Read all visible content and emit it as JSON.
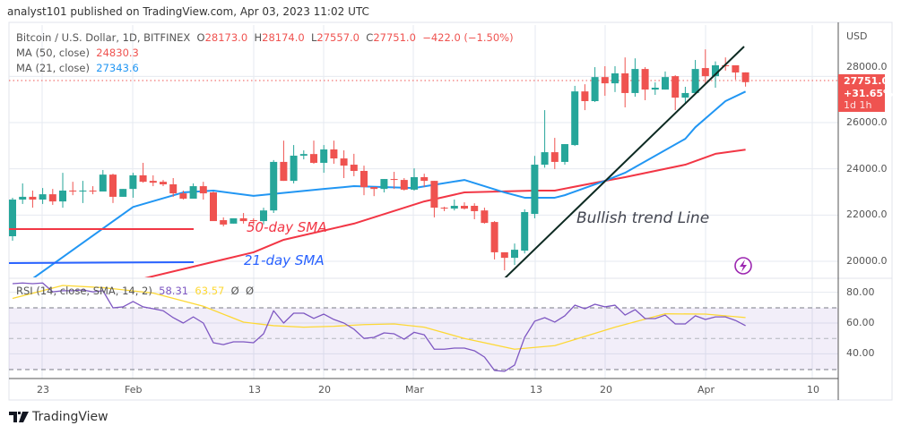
{
  "header": {
    "published": "analyst101 published on TradingView.com, Apr 03, 2023 11:02 UTC"
  },
  "legend": {
    "symbol": "Bitcoin / U.S. Dollar, 1D, BITFINEX",
    "open_label": "O",
    "open": "28173.0",
    "high_label": "H",
    "high": "28174.0",
    "low_label": "L",
    "low": "27557.0",
    "close_label": "C",
    "close": "27751.0",
    "change": "−422.0 (−1.50%)",
    "ma50_label": "MA (50, close)",
    "ma50_value": "24830.3",
    "ma21_label": "MA (21, close)",
    "ma21_value": "27343.6",
    "rsi_label": "RSI (14, close, SMA, 14, 2)",
    "rsi_value": "58.31",
    "rsi_sma_value": "63.57",
    "rsi_extra1": "Ø",
    "rsi_extra2": "Ø"
  },
  "price_axis": {
    "currency": "USD",
    "ticks": [
      "28000.0",
      "26000.0",
      "24000.0",
      "22000.0",
      "20000.0"
    ],
    "rsi_ticks": [
      "80.00",
      "60.00",
      "40.00"
    ]
  },
  "price_tag": {
    "price": "27751.0",
    "change": "+31.65%",
    "countdown": "1d 1h"
  },
  "time_axis": [
    "23",
    "Feb",
    "13",
    "20",
    "Mar",
    "13",
    "20",
    "Apr",
    "10"
  ],
  "drawings": {
    "sma50_label": "50-day SMA",
    "sma21_label": "21-day SMA",
    "trend_label": "Bullish trend Line"
  },
  "footer": {
    "brand": "TradingView"
  },
  "colors": {
    "up": "#26a69a",
    "down": "#ef5350",
    "ma50": "#f23645",
    "ma21": "#2196f3",
    "rsi": "#7e57c2",
    "rsi_sma": "#fdd835",
    "trendline": "#0d2a22"
  },
  "chart_data": {
    "type": "candlestick",
    "price_range": [
      19300,
      30200
    ],
    "candles_columns": [
      "date",
      "open",
      "high",
      "low",
      "close"
    ],
    "candles": [
      [
        "2023-01-20",
        21084,
        22750,
        20890,
        22670
      ],
      [
        "2023-01-21",
        22670,
        23370,
        22480,
        22790
      ],
      [
        "2023-01-22",
        22790,
        23060,
        22320,
        22670
      ],
      [
        "2023-01-23",
        22670,
        23170,
        22480,
        22900
      ],
      [
        "2023-01-24",
        22900,
        23130,
        22440,
        22590
      ],
      [
        "2023-01-25",
        22590,
        23830,
        22320,
        23060
      ],
      [
        "2023-01-26",
        23060,
        23440,
        22860,
        23020
      ],
      [
        "2023-01-27",
        23020,
        23480,
        22520,
        23060
      ],
      [
        "2023-01-28",
        23060,
        23250,
        22900,
        23020
      ],
      [
        "2023-01-29",
        23020,
        23950,
        23020,
        23750
      ],
      [
        "2023-01-30",
        23750,
        23790,
        22520,
        22790
      ],
      [
        "2023-01-31",
        22790,
        23130,
        22790,
        23130
      ],
      [
        "2023-02-01",
        23130,
        23830,
        22750,
        23720
      ],
      [
        "2023-02-02",
        23720,
        24260,
        23400,
        23440
      ],
      [
        "2023-02-03",
        23480,
        23720,
        23250,
        23400
      ],
      [
        "2023-02-04",
        23440,
        23520,
        23250,
        23330
      ],
      [
        "2023-02-05",
        23330,
        23600,
        22790,
        22940
      ],
      [
        "2023-02-06",
        22940,
        23060,
        22670,
        22710
      ],
      [
        "2023-02-07",
        22710,
        23370,
        22710,
        23250
      ],
      [
        "2023-02-08",
        23250,
        23440,
        22670,
        22940
      ],
      [
        "2023-02-09",
        22980,
        23020,
        21740,
        21740
      ],
      [
        "2023-02-10",
        21780,
        21900,
        21510,
        21590
      ],
      [
        "2023-02-11",
        21630,
        21860,
        21630,
        21860
      ],
      [
        "2023-02-12",
        21860,
        22090,
        21630,
        21740
      ],
      [
        "2023-02-13",
        21780,
        21860,
        21550,
        21740
      ],
      [
        "2023-02-14",
        21740,
        22320,
        21590,
        22200
      ],
      [
        "2023-02-15",
        22200,
        24380,
        22090,
        24300
      ],
      [
        "2023-02-16",
        24300,
        25220,
        23480,
        23480
      ],
      [
        "2023-02-17",
        23480,
        25030,
        23370,
        24570
      ],
      [
        "2023-02-18",
        24570,
        24800,
        24410,
        24640
      ],
      [
        "2023-02-19",
        24640,
        25220,
        24220,
        24260
      ],
      [
        "2023-02-20",
        24260,
        25030,
        23830,
        24840
      ],
      [
        "2023-02-21",
        24840,
        25220,
        24220,
        24450
      ],
      [
        "2023-02-22",
        24450,
        24800,
        23600,
        24140
      ],
      [
        "2023-02-23",
        24180,
        24650,
        23680,
        23910
      ],
      [
        "2023-02-24",
        23910,
        24140,
        22860,
        23210
      ],
      [
        "2023-02-25",
        23210,
        23210,
        22820,
        23130
      ],
      [
        "2023-02-26",
        23130,
        23560,
        22980,
        23560
      ],
      [
        "2023-02-27",
        23560,
        23870,
        23130,
        23520
      ],
      [
        "2023-02-28",
        23520,
        23600,
        23060,
        23100
      ],
      [
        "2023-03-01",
        23100,
        24020,
        23060,
        23640
      ],
      [
        "2023-03-02",
        23640,
        23790,
        23210,
        23480
      ],
      [
        "2023-03-03",
        23480,
        23480,
        21900,
        22320
      ],
      [
        "2023-03-04",
        22320,
        22360,
        22170,
        22280
      ],
      [
        "2023-03-05",
        22280,
        22670,
        22200,
        22400
      ],
      [
        "2023-03-06",
        22400,
        22550,
        22240,
        22280
      ],
      [
        "2023-03-07",
        22400,
        22510,
        21820,
        22170
      ],
      [
        "2023-03-08",
        22200,
        22320,
        21630,
        21660
      ],
      [
        "2023-03-09",
        21700,
        21740,
        20080,
        20390
      ],
      [
        "2023-03-10",
        20390,
        20390,
        19610,
        20150
      ],
      [
        "2023-03-11",
        20150,
        20770,
        19840,
        20500
      ],
      [
        "2023-03-12",
        20460,
        22250,
        20340,
        22130
      ],
      [
        "2023-03-13",
        22050,
        24560,
        21860,
        24180
      ],
      [
        "2023-03-14",
        24180,
        26540,
        24050,
        24720
      ],
      [
        "2023-03-15",
        24720,
        25340,
        23990,
        24300
      ],
      [
        "2023-03-16",
        24300,
        25070,
        24180,
        25070
      ],
      [
        "2023-03-17",
        25030,
        27590,
        24990,
        27350
      ],
      [
        "2023-03-18",
        27350,
        27660,
        26540,
        26930
      ],
      [
        "2023-03-19",
        26930,
        28400,
        26890,
        27970
      ],
      [
        "2023-03-20",
        27970,
        28440,
        27160,
        27700
      ],
      [
        "2023-03-21",
        27700,
        28440,
        27320,
        28130
      ],
      [
        "2023-03-22",
        28130,
        28820,
        26660,
        27280
      ],
      [
        "2023-03-23",
        27280,
        28780,
        27120,
        28320
      ],
      [
        "2023-03-24",
        28320,
        28400,
        26970,
        27430
      ],
      [
        "2023-03-25",
        27430,
        27740,
        27200,
        27510
      ],
      [
        "2023-03-26",
        27430,
        28210,
        27430,
        27970
      ],
      [
        "2023-03-27",
        28010,
        28050,
        26540,
        27080
      ],
      [
        "2023-03-28",
        27080,
        27550,
        26810,
        27280
      ],
      [
        "2023-03-29",
        27280,
        28710,
        27280,
        28320
      ],
      [
        "2023-03-30",
        28360,
        29170,
        27660,
        28010
      ],
      [
        "2023-03-31",
        28010,
        28650,
        27510,
        28480
      ],
      [
        "2023-04-01",
        28480,
        28820,
        28250,
        28440
      ],
      [
        "2023-04-02",
        28480,
        28480,
        27860,
        28170
      ],
      [
        "2023-04-03",
        28173,
        28174,
        27557,
        27751
      ]
    ],
    "ma50": [
      [
        "2023-02-02",
        19250
      ],
      [
        "2023-02-13",
        20390
      ],
      [
        "2023-02-16",
        20930
      ],
      [
        "2023-02-23",
        21630
      ],
      [
        "2023-03-02",
        22590
      ],
      [
        "2023-03-06",
        22980
      ],
      [
        "2023-03-13",
        23060
      ],
      [
        "2023-03-15",
        23060
      ],
      [
        "2023-03-20",
        23480
      ],
      [
        "2023-03-22",
        23640
      ],
      [
        "2023-03-28",
        24180
      ],
      [
        "2023-03-31",
        24650
      ],
      [
        "2023-04-03",
        24830
      ]
    ],
    "ma21": [
      [
        "2023-01-22",
        19250
      ],
      [
        "2023-02-01",
        22350
      ],
      [
        "2023-02-06",
        22980
      ],
      [
        "2023-02-09",
        23060
      ],
      [
        "2023-02-13",
        22830
      ],
      [
        "2023-02-20",
        23130
      ],
      [
        "2023-02-23",
        23250
      ],
      [
        "2023-03-01",
        23170
      ],
      [
        "2023-03-06",
        23520
      ],
      [
        "2023-03-10",
        22980
      ],
      [
        "2023-03-12",
        22750
      ],
      [
        "2023-03-15",
        22750
      ],
      [
        "2023-03-16",
        22860
      ],
      [
        "2023-03-20",
        23480
      ],
      [
        "2023-03-22",
        23830
      ],
      [
        "2023-03-28",
        25300
      ],
      [
        "2023-03-29",
        25800
      ],
      [
        "2023-04-01",
        26930
      ],
      [
        "2023-04-03",
        27344
      ]
    ],
    "rsi": [
      85.6,
      86,
      85.6,
      86,
      80.3,
      81,
      81,
      81.5,
      80.3,
      81,
      69.9,
      70.5,
      74,
      70.5,
      69.3,
      68,
      63.5,
      60,
      64,
      60,
      47.2,
      46,
      47.8,
      47.8,
      47.2,
      53,
      68,
      60,
      66.4,
      66.4,
      63,
      65.8,
      62.3,
      60,
      56,
      50,
      50.7,
      53.6,
      53,
      49.5,
      54,
      52.4,
      43,
      43,
      43.7,
      43.7,
      42,
      37.9,
      29.2,
      28.6,
      32.7,
      50.7,
      61.2,
      63.5,
      60.6,
      64.7,
      71.6,
      69.3,
      72.2,
      70.5,
      71.6,
      65.2,
      68.7,
      62.9,
      62.9,
      65.2,
      59.4,
      59.4,
      64.7,
      62.3,
      64,
      64,
      61.7,
      58.31
    ],
    "rsi_sma": [
      [
        "2023-01-20",
        76
      ],
      [
        "2023-01-25",
        84.4
      ],
      [
        "2023-01-29",
        83
      ],
      [
        "2023-02-03",
        79.5
      ],
      [
        "2023-02-08",
        70.9
      ],
      [
        "2023-02-12",
        60.6
      ],
      [
        "2023-02-15",
        58.3
      ],
      [
        "2023-02-18",
        57.3
      ],
      [
        "2023-02-21",
        57.9
      ],
      [
        "2023-02-24",
        59
      ],
      [
        "2023-02-27",
        59.4
      ],
      [
        "2023-03-02",
        57.3
      ],
      [
        "2023-03-06",
        50
      ],
      [
        "2023-03-11",
        43
      ],
      [
        "2023-03-15",
        45.3
      ],
      [
        "2023-03-21",
        57.3
      ],
      [
        "2023-03-26",
        66
      ],
      [
        "2023-03-30",
        65.8
      ],
      [
        "2023-04-03",
        63.57
      ]
    ],
    "rsi_range": [
      20,
      90
    ],
    "rsi_bands": [
      70,
      50,
      30
    ],
    "grid": true
  }
}
